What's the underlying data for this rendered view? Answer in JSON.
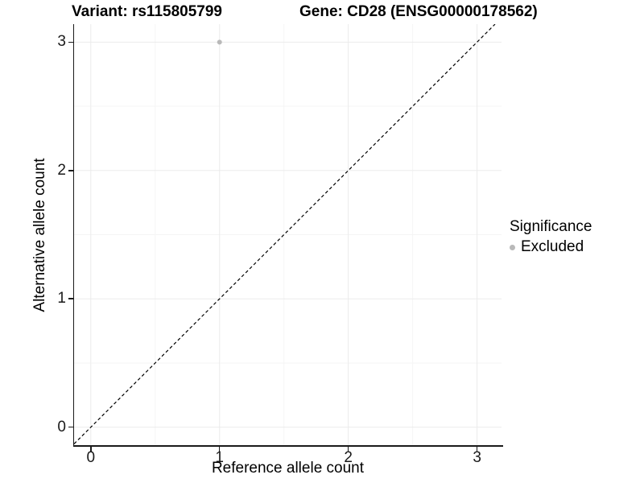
{
  "header": {
    "variant_title": "Variant: rs115805799",
    "gene_title": "Gene: CD28 (ENSG00000178562)"
  },
  "chart_data": {
    "type": "scatter",
    "xlabel": "Reference allele count",
    "ylabel": "Alternative allele count",
    "xlim": [
      -0.13,
      3.19
    ],
    "ylim": [
      -0.14,
      3.14
    ],
    "x_ticks": [
      0,
      1,
      2,
      3
    ],
    "y_ticks": [
      0,
      1,
      2,
      3
    ],
    "minor_ticks": [
      0.5,
      1.5,
      2.5
    ],
    "grid": true,
    "points": [
      {
        "x": 1,
        "y": 3,
        "series": "Excluded",
        "color": "#b9b9b9"
      }
    ],
    "reference_line": {
      "kind": "identity",
      "slope": 1,
      "intercept": 0,
      "style": "dashed",
      "color": "#000000"
    },
    "colors": {
      "grid_major": "#ebebeb",
      "grid_minor": "#f5f5f5",
      "axis_line": "#1a1a1a",
      "point": "#b9b9b9"
    },
    "legend": {
      "title": "Significance",
      "position": "right",
      "items": [
        {
          "label": "Excluded",
          "color": "#b9b9b9",
          "marker": "circle"
        }
      ]
    }
  }
}
